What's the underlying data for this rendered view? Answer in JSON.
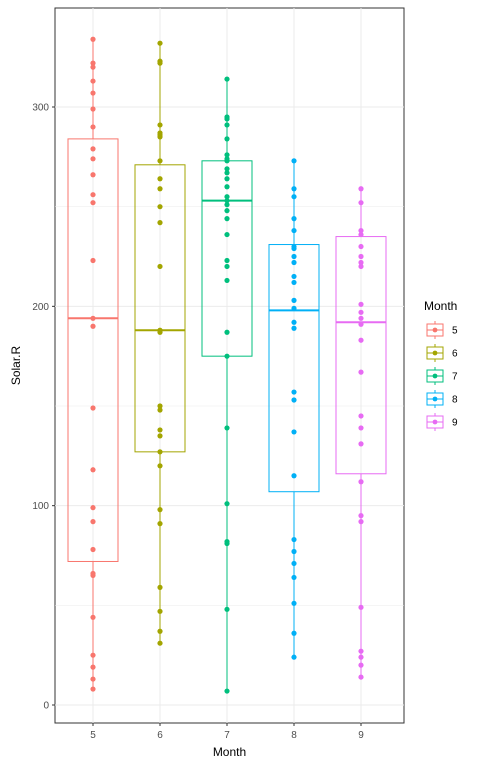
{
  "chart_data": {
    "type": "box",
    "xlabel": "Month",
    "ylabel": "Solar.R",
    "ylim": [
      0,
      345
    ],
    "y_ticks": [
      0,
      100,
      200,
      300
    ],
    "categories": [
      "5",
      "6",
      "7",
      "8",
      "9"
    ],
    "grid": true,
    "legend": {
      "title": "Month",
      "position": "right"
    },
    "series": [
      {
        "name": "5",
        "color": "#F8766D",
        "box": {
          "lower_whisker": 8,
          "q1": 72,
          "median": 194,
          "q3": 284,
          "upper_whisker": 334
        },
        "points": [
          334,
          322,
          320,
          313,
          307,
          299,
          290,
          279,
          274,
          266,
          256,
          252,
          223,
          194,
          190,
          149,
          118,
          99,
          92,
          78,
          66,
          65,
          44,
          25,
          19,
          13,
          8
        ]
      },
      {
        "name": "6",
        "color": "#A3A500",
        "box": {
          "lower_whisker": 31,
          "q1": 127,
          "median": 188,
          "q3": 271,
          "upper_whisker": 332
        },
        "points": [
          332,
          323,
          322,
          291,
          287,
          286,
          285,
          273,
          264,
          259,
          250,
          242,
          220,
          188,
          187,
          150,
          148,
          138,
          135,
          127,
          120,
          98,
          91,
          59,
          47,
          37,
          31
        ]
      },
      {
        "name": "7",
        "color": "#00BF7D",
        "box": {
          "lower_whisker": 7,
          "q1": 175,
          "median": 253,
          "q3": 273,
          "upper_whisker": 314
        },
        "points": [
          314,
          295,
          294,
          291,
          284,
          276,
          274,
          273,
          269,
          267,
          264,
          260,
          255,
          253,
          251,
          248,
          244,
          236,
          223,
          220,
          213,
          187,
          175,
          139,
          101,
          82,
          81,
          48,
          7
        ]
      },
      {
        "name": "8",
        "color": "#00B0F6",
        "box": {
          "lower_whisker": 24,
          "q1": 107,
          "median": 198,
          "q3": 231,
          "upper_whisker": 273
        },
        "points": [
          273,
          259,
          255,
          244,
          238,
          230,
          229,
          225,
          222,
          215,
          212,
          203,
          199,
          192,
          189,
          157,
          153,
          137,
          115,
          83,
          77,
          71,
          64,
          51,
          36,
          24
        ]
      },
      {
        "name": "9",
        "color": "#E76BF3",
        "box": {
          "lower_whisker": 14,
          "q1": 116,
          "median": 192,
          "q3": 235,
          "upper_whisker": 259
        },
        "points": [
          259,
          252,
          238,
          236,
          230,
          225,
          222,
          220,
          201,
          197,
          194,
          191,
          183,
          167,
          145,
          139,
          131,
          112,
          95,
          92,
          49,
          27,
          24,
          20,
          14
        ]
      }
    ]
  }
}
